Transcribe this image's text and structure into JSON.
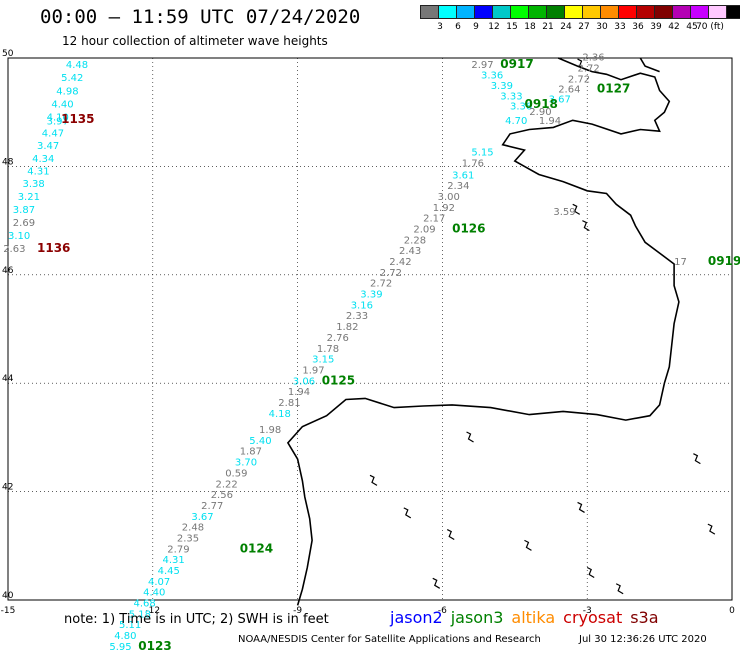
{
  "header": {
    "title": "00:00 – 11:59 UTC 07/24/2020",
    "subtitle": "12 hour collection of altimeter wave heights"
  },
  "colorbar": {
    "colors": [
      "#777777",
      "#00ffff",
      "#00b4ff",
      "#0000ff",
      "#00c8c8",
      "#00ff00",
      "#00b400",
      "#008000",
      "#ffff00",
      "#ffc800",
      "#ff8c00",
      "#ff0000",
      "#b40000",
      "#800000",
      "#b400b4",
      "#c800ff",
      "#ffc8ff",
      "#000000"
    ],
    "labels": [
      "3",
      "6",
      "9",
      "12",
      "15",
      "18",
      "21",
      "24",
      "27",
      "30",
      "33",
      "36",
      "39",
      "42",
      "45",
      "70 (ft)"
    ]
  },
  "footer": {
    "note": "note:  1) Time is in UTC; 2) SWH is in feet",
    "legend": [
      {
        "name": "jason2",
        "color": "#0000ff"
      },
      {
        "name": "jason3",
        "color": "#008000"
      },
      {
        "name": "altika",
        "color": "#ff8c00"
      },
      {
        "name": "cryosat",
        "color": "#cc0000"
      },
      {
        "name": "s3a",
        "color": "#800000"
      }
    ],
    "credit": "NOAA/NESDIS Center for Satellite Applications and Research",
    "timestamp": "Jul 30 12:36:26 UTC 2020"
  },
  "chart_data": {
    "type": "scatter",
    "xlim": [
      -15,
      0
    ],
    "ylim": [
      40,
      50
    ],
    "x_ticks": [
      "-15",
      "-12",
      "-9",
      "-6",
      "-3",
      "0"
    ],
    "y_ticks": [
      "40",
      "42",
      "44",
      "46",
      "48",
      "50"
    ],
    "grid": true,
    "colors": {
      "grey": "#777777",
      "cyan": "#00e0f0",
      "green": "#008000",
      "darkred": "#8b0000"
    },
    "points": [
      {
        "lon": -13.8,
        "lat": 49.82,
        "value": "4.48",
        "color": "cyan"
      },
      {
        "lon": -13.9,
        "lat": 49.58,
        "value": "5.42",
        "color": "cyan"
      },
      {
        "lon": -14.0,
        "lat": 49.33,
        "value": "4.98",
        "color": "cyan"
      },
      {
        "lon": -14.1,
        "lat": 49.09,
        "value": "4.40",
        "color": "cyan"
      },
      {
        "lon": -14.2,
        "lat": 48.85,
        "value": "4.10",
        "color": "cyan"
      },
      {
        "lon": -14.2,
        "lat": 48.77,
        "value": "3.97",
        "color": "cyan"
      },
      {
        "lon": -14.3,
        "lat": 48.55,
        "value": "4.47",
        "color": "cyan"
      },
      {
        "lon": -14.4,
        "lat": 48.32,
        "value": "3.47",
        "color": "cyan"
      },
      {
        "lon": -14.5,
        "lat": 48.08,
        "value": "4.34",
        "color": "cyan"
      },
      {
        "lon": -14.6,
        "lat": 47.85,
        "value": "4.31",
        "color": "cyan"
      },
      {
        "lon": -14.7,
        "lat": 47.62,
        "value": "3.38",
        "color": "cyan"
      },
      {
        "lon": -14.8,
        "lat": 47.38,
        "value": "3.21",
        "color": "cyan"
      },
      {
        "lon": -14.9,
        "lat": 47.14,
        "value": "3.87",
        "color": "cyan"
      },
      {
        "lon": -14.9,
        "lat": 46.9,
        "value": "2.69",
        "color": "grey"
      },
      {
        "lon": -15.0,
        "lat": 46.66,
        "value": "3.10",
        "color": "cyan"
      },
      {
        "lon": -15.1,
        "lat": 46.42,
        "value": "2.63",
        "color": "grey"
      },
      {
        "lon": -5.4,
        "lat": 49.82,
        "value": "2.97",
        "color": "grey"
      },
      {
        "lon": -5.2,
        "lat": 49.62,
        "value": "3.36",
        "color": "cyan"
      },
      {
        "lon": -5.0,
        "lat": 49.43,
        "value": "3.39",
        "color": "cyan"
      },
      {
        "lon": -4.8,
        "lat": 49.23,
        "value": "3.33",
        "color": "cyan"
      },
      {
        "lon": -4.6,
        "lat": 49.05,
        "value": "3.36",
        "color": "cyan"
      },
      {
        "lon": -4.2,
        "lat": 48.95,
        "value": "2.90",
        "color": "grey"
      },
      {
        "lon": -4.7,
        "lat": 48.78,
        "value": "4.70",
        "color": "cyan"
      },
      {
        "lon": -4.0,
        "lat": 48.78,
        "value": "1.94",
        "color": "grey"
      },
      {
        "lon": -3.8,
        "lat": 49.18,
        "value": "3.67",
        "color": "cyan"
      },
      {
        "lon": -3.1,
        "lat": 49.95,
        "value": "2.36",
        "color": "grey"
      },
      {
        "lon": -3.2,
        "lat": 49.75,
        "value": "2.72",
        "color": "grey"
      },
      {
        "lon": -3.4,
        "lat": 49.55,
        "value": "2.72",
        "color": "grey"
      },
      {
        "lon": -3.6,
        "lat": 49.36,
        "value": "2.64",
        "color": "grey"
      },
      {
        "lon": -5.4,
        "lat": 48.2,
        "value": "5.15",
        "color": "cyan"
      },
      {
        "lon": -5.6,
        "lat": 48.0,
        "value": "1.76",
        "color": "grey"
      },
      {
        "lon": -5.8,
        "lat": 47.78,
        "value": "3.61",
        "color": "cyan"
      },
      {
        "lon": -5.9,
        "lat": 47.58,
        "value": "2.34",
        "color": "grey"
      },
      {
        "lon": -6.1,
        "lat": 47.38,
        "value": "3.00",
        "color": "grey"
      },
      {
        "lon": -6.2,
        "lat": 47.18,
        "value": "1.92",
        "color": "grey"
      },
      {
        "lon": -6.4,
        "lat": 46.98,
        "value": "2.17",
        "color": "grey"
      },
      {
        "lon": -6.6,
        "lat": 46.78,
        "value": "2.09",
        "color": "grey"
      },
      {
        "lon": -6.8,
        "lat": 46.58,
        "value": "2.28",
        "color": "grey"
      },
      {
        "lon": -6.9,
        "lat": 46.38,
        "value": "2.43",
        "color": "grey"
      },
      {
        "lon": -7.1,
        "lat": 46.18,
        "value": "2.42",
        "color": "grey"
      },
      {
        "lon": -7.3,
        "lat": 45.98,
        "value": "2.72",
        "color": "grey"
      },
      {
        "lon": -7.5,
        "lat": 45.78,
        "value": "2.72",
        "color": "grey"
      },
      {
        "lon": -7.7,
        "lat": 45.58,
        "value": "3.39",
        "color": "cyan"
      },
      {
        "lon": -7.9,
        "lat": 45.38,
        "value": "3.16",
        "color": "cyan"
      },
      {
        "lon": -8.0,
        "lat": 45.18,
        "value": "2.33",
        "color": "grey"
      },
      {
        "lon": -8.2,
        "lat": 44.98,
        "value": "1.82",
        "color": "grey"
      },
      {
        "lon": -8.4,
        "lat": 44.78,
        "value": "2.76",
        "color": "grey"
      },
      {
        "lon": -8.6,
        "lat": 44.58,
        "value": "1.78",
        "color": "grey"
      },
      {
        "lon": -8.7,
        "lat": 44.38,
        "value": "3.15",
        "color": "cyan"
      },
      {
        "lon": -8.9,
        "lat": 44.18,
        "value": "1.97",
        "color": "grey"
      },
      {
        "lon": -9.1,
        "lat": 43.98,
        "value": "3.06",
        "color": "cyan"
      },
      {
        "lon": -9.2,
        "lat": 43.78,
        "value": "1.94",
        "color": "grey"
      },
      {
        "lon": -9.4,
        "lat": 43.58,
        "value": "2.81",
        "color": "grey"
      },
      {
        "lon": -9.6,
        "lat": 43.38,
        "value": "4.18",
        "color": "cyan"
      },
      {
        "lon": -9.8,
        "lat": 43.08,
        "value": "1.98",
        "color": "grey"
      },
      {
        "lon": -10.0,
        "lat": 42.88,
        "value": "5.40",
        "color": "cyan"
      },
      {
        "lon": -10.2,
        "lat": 42.68,
        "value": "1.87",
        "color": "grey"
      },
      {
        "lon": -10.3,
        "lat": 42.48,
        "value": "3.70",
        "color": "cyan"
      },
      {
        "lon": -10.5,
        "lat": 42.28,
        "value": "0.59",
        "color": "grey"
      },
      {
        "lon": -10.7,
        "lat": 42.08,
        "value": "2.22",
        "color": "grey"
      },
      {
        "lon": -10.8,
        "lat": 41.88,
        "value": "2.56",
        "color": "grey"
      },
      {
        "lon": -11.0,
        "lat": 41.68,
        "value": "2.77",
        "color": "grey"
      },
      {
        "lon": -11.2,
        "lat": 41.48,
        "value": "3.67",
        "color": "cyan"
      },
      {
        "lon": -11.4,
        "lat": 41.28,
        "value": "2.48",
        "color": "grey"
      },
      {
        "lon": -11.5,
        "lat": 41.08,
        "value": "2.35",
        "color": "grey"
      },
      {
        "lon": -11.7,
        "lat": 40.88,
        "value": "2.79",
        "color": "grey"
      },
      {
        "lon": -11.8,
        "lat": 40.68,
        "value": "4.31",
        "color": "cyan"
      },
      {
        "lon": -11.9,
        "lat": 40.48,
        "value": "4.45",
        "color": "cyan"
      },
      {
        "lon": -12.1,
        "lat": 40.28,
        "value": "4.07",
        "color": "cyan"
      },
      {
        "lon": -12.2,
        "lat": 40.08,
        "value": "4.40",
        "color": "cyan"
      },
      {
        "lon": -12.4,
        "lat": 39.88,
        "value": "4.68",
        "color": "cyan"
      },
      {
        "lon": -12.5,
        "lat": 39.68,
        "value": "5.18",
        "color": "cyan"
      },
      {
        "lon": -12.7,
        "lat": 39.48,
        "value": "5.11",
        "color": "cyan"
      },
      {
        "lon": -12.8,
        "lat": 39.28,
        "value": "4.80",
        "color": "cyan"
      },
      {
        "lon": -12.9,
        "lat": 39.08,
        "value": "5.95",
        "color": "cyan"
      },
      {
        "lon": -3.7,
        "lat": 47.1,
        "value": "3.59",
        "color": "grey"
      },
      {
        "lon": -1.2,
        "lat": 46.18,
        "value": "17",
        "color": "grey"
      }
    ],
    "time_labels": [
      {
        "lon": -13.9,
        "lat": 48.8,
        "value": "1135",
        "color": "darkred"
      },
      {
        "lon": -14.4,
        "lat": 46.42,
        "value": "1136",
        "color": "darkred"
      },
      {
        "lon": -4.8,
        "lat": 49.82,
        "value": "0917",
        "color": "green"
      },
      {
        "lon": -4.3,
        "lat": 49.08,
        "value": "0918",
        "color": "green"
      },
      {
        "lon": -2.8,
        "lat": 49.36,
        "value": "0127",
        "color": "green"
      },
      {
        "lon": -5.8,
        "lat": 46.78,
        "value": "0126",
        "color": "green"
      },
      {
        "lon": -8.5,
        "lat": 43.98,
        "value": "0125",
        "color": "green"
      },
      {
        "lon": -10.2,
        "lat": 40.88,
        "value": "0124",
        "color": "green"
      },
      {
        "lon": -12.3,
        "lat": 39.08,
        "value": "0123",
        "color": "green"
      },
      {
        "lon": -0.5,
        "lat": 46.18,
        "value": "0919",
        "color": "green"
      }
    ]
  }
}
